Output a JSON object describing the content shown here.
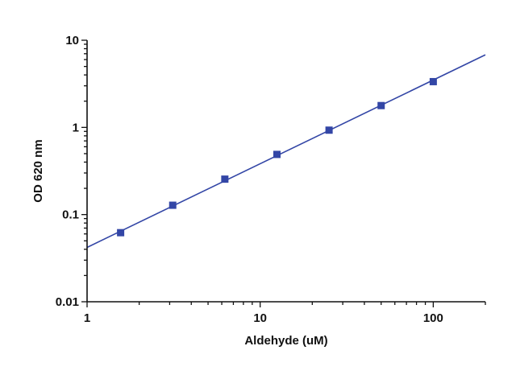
{
  "chart_data": {
    "type": "scatter",
    "xlabel": "Aldehyde (uM)",
    "ylabel": "OD 620 nm",
    "xscale": "log",
    "yscale": "log",
    "xlim": [
      1,
      200
    ],
    "ylim": [
      0.01,
      10
    ],
    "xticks": [
      1,
      10,
      100
    ],
    "xtick_labels": [
      "1",
      "10",
      "100"
    ],
    "yticks": [
      0.01,
      0.1,
      1,
      10
    ],
    "ytick_labels": [
      "0.01",
      "0.1",
      "1",
      "10"
    ],
    "grid": false,
    "legend": "none",
    "series": [
      {
        "marker": "square",
        "color": "#3346a6",
        "x": [
          1.5625,
          3.125,
          6.25,
          12.5,
          25,
          50,
          100
        ],
        "y": [
          0.062,
          0.128,
          0.255,
          0.49,
          0.93,
          1.78,
          3.35
        ]
      }
    ],
    "fit_line": {
      "type": "linear fit on log-log scale",
      "color": "#3346a6",
      "x": [
        1,
        200
      ],
      "y": [
        0.042,
        6.8
      ]
    }
  }
}
